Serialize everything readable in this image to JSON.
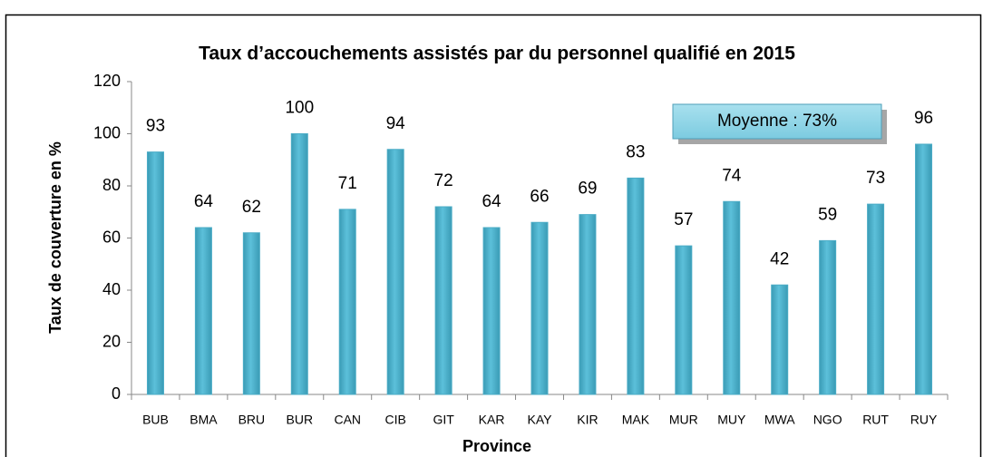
{
  "chart_data": {
    "type": "bar",
    "title": "Taux d’accouchements assistés par du personnel qualifié en 2015",
    "x_label": "Province",
    "y_label": "Taux de couverture en %",
    "annotation": "Moyenne : 73%",
    "categories": [
      "BUB",
      "BMA",
      "BRU",
      "BUR",
      "CAN",
      "CIB",
      "GIT",
      "KAR",
      "KAY",
      "KIR",
      "MAK",
      "MUR",
      "MUY",
      "MWA",
      "NGO",
      "RUT",
      "RUY"
    ],
    "values": [
      93,
      64,
      62,
      100,
      71,
      94,
      72,
      64,
      66,
      69,
      83,
      57,
      74,
      42,
      59,
      73,
      96
    ],
    "color": "#4bacc6",
    "ylim": [
      0,
      120
    ],
    "yticks": [
      0,
      20,
      40,
      60,
      80,
      100,
      120
    ],
    "grid": false
  }
}
